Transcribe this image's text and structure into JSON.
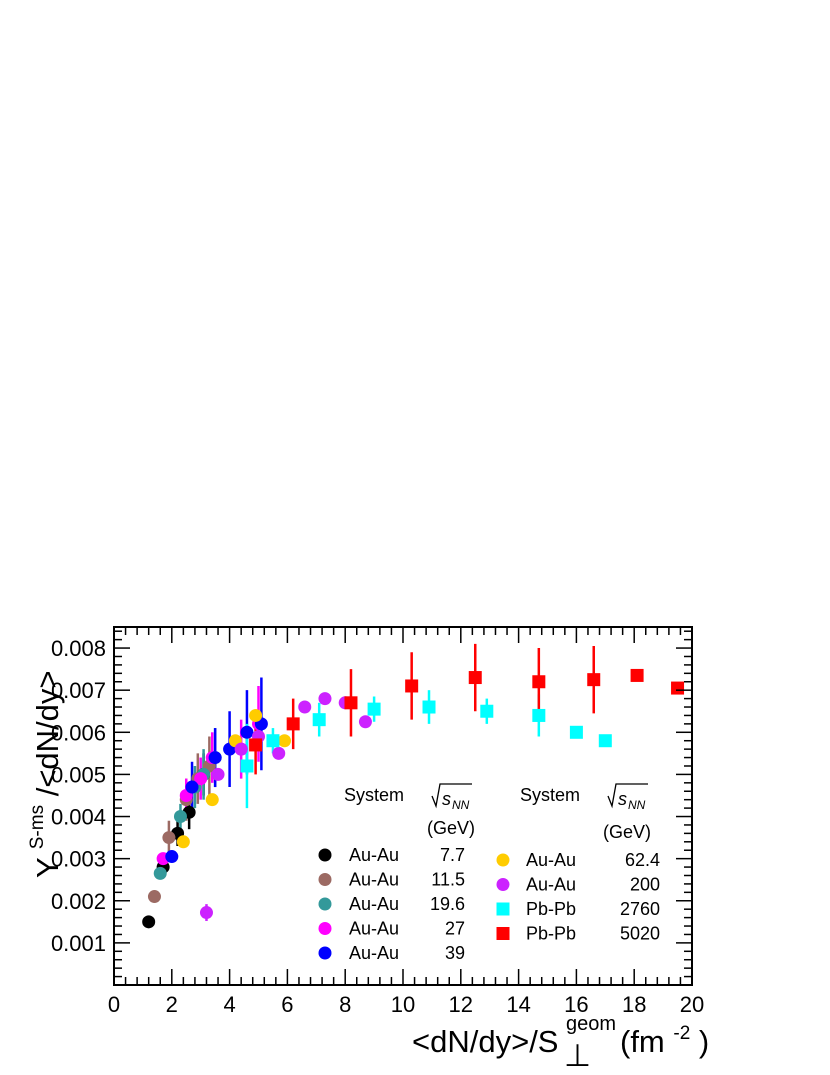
{
  "chart_data": {
    "type": "scatter",
    "xlim": [
      0,
      20
    ],
    "ylim": [
      0,
      0.0085
    ],
    "x_ticks": [
      "0",
      "2",
      "4",
      "6",
      "8",
      "10",
      "12",
      "14",
      "16",
      "18",
      "20"
    ],
    "y_ticks": [
      "0.001",
      "0.002",
      "0.003",
      "0.004",
      "0.005",
      "0.006",
      "0.007",
      "0.008"
    ],
    "xlabel": {
      "main": "<dN/dy>/S",
      "sub": "⊥",
      "sup": "geom",
      "unit_open": "(fm",
      "unit_sup": "-2",
      "unit_close": ")"
    },
    "ylabel": {
      "main": "Y",
      "sup": "S-ms",
      "rest": "/<dN/dy>"
    },
    "legend": {
      "system_header": "System",
      "energy_header": "√s",
      "energy_sub": "NN",
      "unit": "(GeV)"
    },
    "series": [
      {
        "system": "Au-Au",
        "energy": "7.7",
        "color": "#000000",
        "marker": "circle",
        "points": [
          [
            1.2,
            0.0015,
            0
          ],
          [
            1.7,
            0.0028,
            0.0002
          ],
          [
            2.2,
            0.0036,
            0.0003
          ],
          [
            2.6,
            0.0041,
            0.0004
          ],
          [
            3.1,
            0.005,
            0.0005
          ]
        ]
      },
      {
        "system": "Au-Au",
        "energy": "11.5",
        "color": "#9c6a63",
        "marker": "circle",
        "points": [
          [
            1.4,
            0.0021,
            0
          ],
          [
            1.9,
            0.0035,
            0.0004
          ],
          [
            2.5,
            0.0044,
            0.0005
          ],
          [
            2.9,
            0.0049,
            0.0006
          ],
          [
            3.3,
            0.0052,
            0.0007
          ]
        ]
      },
      {
        "system": "Au-Au",
        "energy": "19.6",
        "color": "#33999a",
        "marker": "circle",
        "points": [
          [
            1.6,
            0.00265,
            0
          ],
          [
            2.3,
            0.004,
            0.0003
          ],
          [
            2.8,
            0.0047,
            0.0005
          ],
          [
            3.1,
            0.005,
            0.0006
          ],
          [
            3.5,
            0.0054,
            0.0007
          ]
        ]
      },
      {
        "system": "Au-Au",
        "energy": "27",
        "color": "#ff00ff",
        "marker": "circle",
        "points": [
          [
            1.7,
            0.003,
            0
          ],
          [
            2.5,
            0.0045,
            0.0004
          ],
          [
            3.0,
            0.0049,
            0.0005
          ],
          [
            3.4,
            0.0054,
            0.0006
          ],
          [
            4.4,
            0.0056,
            0.0007
          ],
          [
            5.0,
            0.0062,
            0.0009
          ]
        ]
      },
      {
        "system": "Au-Au",
        "energy": "39",
        "color": "#0000ff",
        "marker": "circle",
        "points": [
          [
            2.0,
            0.00305,
            0
          ],
          [
            2.7,
            0.0047,
            0.0006
          ],
          [
            3.5,
            0.0054,
            0.0007
          ],
          [
            4.0,
            0.0056,
            0.0009
          ],
          [
            4.6,
            0.006,
            0.001
          ],
          [
            5.1,
            0.0062,
            0.0011
          ]
        ]
      },
      {
        "system": "Au-Au",
        "energy": "62.4",
        "color": "#ffcc00",
        "marker": "circle",
        "points": [
          [
            2.4,
            0.0034,
            0
          ],
          [
            3.4,
            0.0044,
            0
          ],
          [
            4.2,
            0.0058,
            0
          ],
          [
            4.9,
            0.0064,
            0
          ],
          [
            5.9,
            0.0058,
            0
          ]
        ]
      },
      {
        "system": "Au-Au",
        "energy": "200",
        "color": "#cc22ff",
        "marker": "circle",
        "points": [
          [
            3.2,
            0.00172,
            0.0002
          ],
          [
            3.6,
            0.005,
            0
          ],
          [
            4.4,
            0.0056,
            0
          ],
          [
            5.0,
            0.0059,
            0
          ],
          [
            5.7,
            0.0055,
            0
          ],
          [
            6.6,
            0.0066,
            0
          ],
          [
            7.3,
            0.0068,
            0
          ],
          [
            8.0,
            0.0067,
            0
          ],
          [
            8.7,
            0.00625,
            0
          ]
        ]
      },
      {
        "system": "Pb-Pb",
        "energy": "2760",
        "color": "#00ffff",
        "marker": "square",
        "points": [
          [
            4.6,
            0.0052,
            0.001
          ],
          [
            5.5,
            0.0058,
            0.0003
          ],
          [
            7.1,
            0.0063,
            0.0004
          ],
          [
            9.0,
            0.00655,
            0.0003
          ],
          [
            10.9,
            0.0066,
            0.0004
          ],
          [
            12.9,
            0.0065,
            0.0003
          ],
          [
            14.7,
            0.0064,
            0.0005
          ],
          [
            16.0,
            0.006,
            0
          ],
          [
            17.0,
            0.0058,
            0
          ]
        ]
      },
      {
        "system": "Pb-Pb",
        "energy": "5020",
        "color": "#ff0000",
        "marker": "square",
        "points": [
          [
            4.9,
            0.0057,
            0.0007
          ],
          [
            6.2,
            0.0062,
            0.0006
          ],
          [
            8.2,
            0.0067,
            0.0008
          ],
          [
            10.3,
            0.0071,
            0.0008
          ],
          [
            12.5,
            0.0073,
            0.0008
          ],
          [
            14.7,
            0.0072,
            0.0008
          ],
          [
            16.6,
            0.00725,
            0.0008
          ],
          [
            18.1,
            0.00735,
            0
          ],
          [
            19.5,
            0.00705,
            0
          ]
        ]
      }
    ]
  }
}
